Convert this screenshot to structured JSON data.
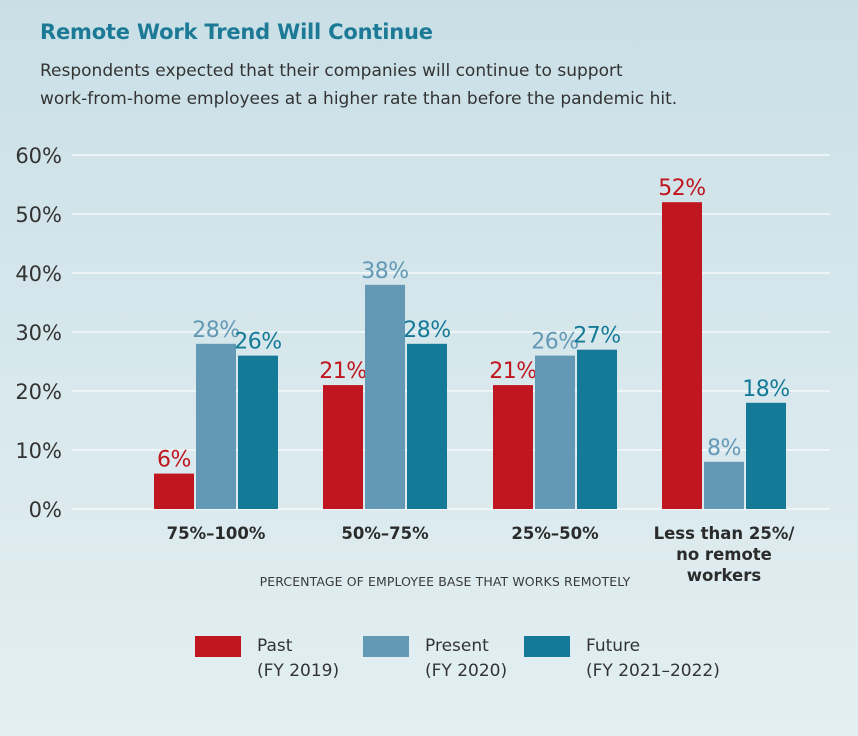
{
  "header": {
    "title": "Remote Work Trend Will Continue",
    "subtitle_lines": [
      "Respondents expected that their companies will continue to support",
      "work-from-home employees at a higher rate than before the pandemic hit."
    ]
  },
  "chart_data": {
    "type": "bar",
    "title": "Remote Work Trend Will Continue",
    "xlabel": "PERCENTAGE OF EMPLOYEE BASE THAT WORKS REMOTELY",
    "ylabel": "",
    "ylim": [
      0,
      60
    ],
    "y_ticks": [
      0,
      10,
      20,
      30,
      40,
      50,
      60
    ],
    "y_tick_labels": [
      "0%",
      "10%",
      "20%",
      "30%",
      "40%",
      "50%",
      "60%"
    ],
    "grid": true,
    "legend_position": "bottom",
    "categories": [
      [
        "75%–100%"
      ],
      [
        "50%–75%"
      ],
      [
        "25%–50%"
      ],
      [
        "Less than 25%/",
        "no remote",
        "workers"
      ]
    ],
    "series": [
      {
        "name": "Past",
        "sublabel": "(FY 2019)",
        "color": "#c0161f",
        "label_color": "#c0161f",
        "values": [
          6,
          21,
          21,
          52
        ]
      },
      {
        "name": "Present",
        "sublabel": "(FY 2020)",
        "color": "#6499b5",
        "label_color": "#6499b5",
        "values": [
          28,
          38,
          26,
          8
        ]
      },
      {
        "name": "Future",
        "sublabel": "(FY 2021–2022)",
        "color": "#157a98",
        "label_color": "#157a98",
        "values": [
          26,
          28,
          27,
          18
        ]
      }
    ],
    "value_suffix": "%"
  }
}
